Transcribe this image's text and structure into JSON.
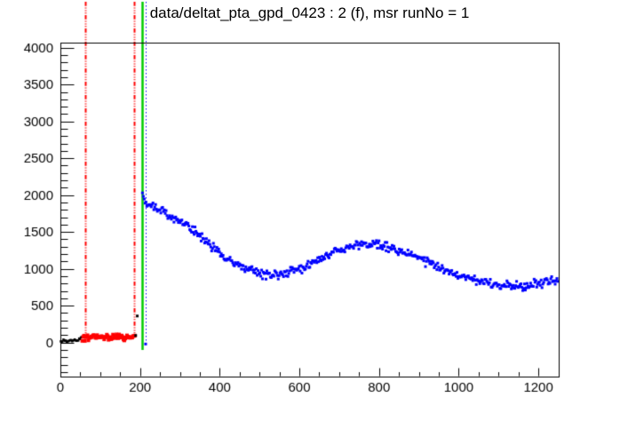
{
  "pad": {
    "background": "#ffffff"
  },
  "chart_data": {
    "type": "scatter",
    "title": "data/deltat_pta_gpd_0423 : 2 (f), msr runNo = 1",
    "xlabel": "",
    "ylabel": "",
    "xlim": [
      0,
      1250
    ],
    "ylim": [
      -450,
      4075
    ],
    "grid": false,
    "legend": false,
    "axis_color": "#000000",
    "x_axis": {
      "major_tick_step": 200,
      "minor_tick_step": 50,
      "tick_labels": [
        "0",
        "200",
        "400",
        "600",
        "800",
        "1000",
        "1200"
      ],
      "tick_label_values": [
        0,
        200,
        400,
        600,
        800,
        1000,
        1200
      ]
    },
    "y_axis": {
      "major_tick_step": 500,
      "minor_tick_step": 100,
      "tick_labels": [
        "0",
        "500",
        "1000",
        "1500",
        "2000",
        "2500",
        "3000",
        "3500",
        "4000"
      ],
      "tick_label_values": [
        0,
        500,
        1000,
        1500,
        2000,
        2500,
        3000,
        3500,
        4000
      ]
    },
    "vlines": [
      {
        "name": "background-range-start",
        "x": 62,
        "color": "#ff0000",
        "style": "dash-dot-dot",
        "width": 2,
        "y_bottom": 100
      },
      {
        "name": "background-range-end",
        "x": 186,
        "color": "#ff0000",
        "style": "dash-dot-dot",
        "width": 2,
        "y_bottom": 100
      },
      {
        "name": "t0-line",
        "x": 205,
        "color": "#00cc00",
        "style": "solid",
        "width": 2.5,
        "y_bottom": -100
      },
      {
        "name": "first-good-bin-line",
        "x": 214,
        "color": "#0000ff",
        "style": "dotted",
        "width": 1,
        "y_bottom": -42
      }
    ],
    "series": [
      {
        "name": "histogram-pre-background",
        "color": "#000000",
        "marker": "square",
        "marker_size": 2.5,
        "x_start": 1,
        "x_end": 60,
        "x_step": 2.2,
        "jitter_sigma": 10,
        "anchors": [
          [
            0,
            18
          ],
          [
            30,
            22
          ],
          [
            45,
            32
          ],
          [
            52,
            70
          ],
          [
            60,
            90
          ]
        ]
      },
      {
        "name": "histogram-background-window",
        "color": "#ff0000",
        "marker": "square",
        "marker_size": 4,
        "x_start": 55,
        "x_end": 188,
        "x_step": 2.2,
        "jitter_sigma": 22,
        "anchors": [
          [
            55,
            65
          ],
          [
            90,
            75
          ],
          [
            140,
            72
          ],
          [
            188,
            78
          ]
        ]
      },
      {
        "name": "histogram-t0-rise",
        "color": "#000000",
        "marker": "square",
        "marker_size": 3,
        "points": [
          [
            189,
            95
          ],
          [
            193,
            360
          ]
        ]
      },
      {
        "name": "histogram-good-data",
        "color": "#0000ff",
        "marker": "square",
        "marker_size": 3,
        "x_start": 206,
        "x_end": 1249,
        "x_step": 2.2,
        "jitter_sigma": 28,
        "anchors": [
          [
            206,
            1990
          ],
          [
            212,
            1940
          ],
          [
            222,
            1895
          ],
          [
            240,
            1845
          ],
          [
            258,
            1790
          ],
          [
            276,
            1725
          ],
          [
            295,
            1665
          ],
          [
            315,
            1590
          ],
          [
            335,
            1500
          ],
          [
            355,
            1420
          ],
          [
            375,
            1330
          ],
          [
            395,
            1240
          ],
          [
            415,
            1155
          ],
          [
            435,
            1080
          ],
          [
            455,
            1020
          ],
          [
            475,
            975
          ],
          [
            495,
            945
          ],
          [
            515,
            930
          ],
          [
            535,
            925
          ],
          [
            555,
            930
          ],
          [
            575,
            950
          ],
          [
            595,
            985
          ],
          [
            615,
            1030
          ],
          [
            635,
            1080
          ],
          [
            655,
            1135
          ],
          [
            675,
            1190
          ],
          [
            695,
            1240
          ],
          [
            715,
            1280
          ],
          [
            735,
            1310
          ],
          [
            755,
            1325
          ],
          [
            775,
            1330
          ],
          [
            795,
            1325
          ],
          [
            815,
            1305
          ],
          [
            835,
            1275
          ],
          [
            855,
            1240
          ],
          [
            875,
            1200
          ],
          [
            895,
            1155
          ],
          [
            915,
            1110
          ],
          [
            935,
            1060
          ],
          [
            955,
            1015
          ],
          [
            975,
            970
          ],
          [
            995,
            930
          ],
          [
            1015,
            895
          ],
          [
            1035,
            860
          ],
          [
            1055,
            825
          ],
          [
            1075,
            800
          ],
          [
            1095,
            782
          ],
          [
            1115,
            768
          ],
          [
            1135,
            758
          ],
          [
            1155,
            758
          ],
          [
            1175,
            770
          ],
          [
            1195,
            792
          ],
          [
            1215,
            818
          ],
          [
            1235,
            845
          ],
          [
            1249,
            865
          ]
        ],
        "extra_points": [
          [
            214,
            -20
          ]
        ]
      }
    ]
  }
}
